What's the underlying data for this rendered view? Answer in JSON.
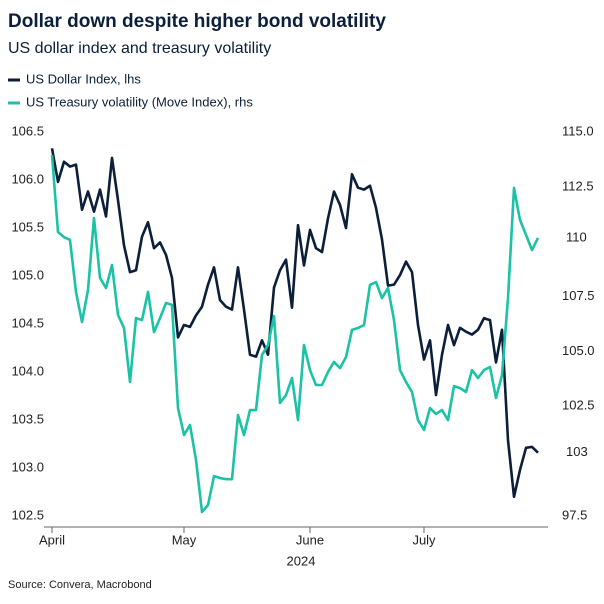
{
  "chart_data": {
    "type": "line",
    "title": "Dollar down despite higher bond volatility",
    "subtitle": "US dollar index and treasury volatility",
    "source": "Source: Convera, Macrobond",
    "x_label": "2024",
    "categories": [
      "April",
      null,
      null,
      null,
      null,
      null,
      null,
      null,
      null,
      null,
      null,
      null,
      null,
      null,
      null,
      null,
      null,
      null,
      null,
      null,
      null,
      null,
      "May",
      null,
      null,
      null,
      null,
      null,
      null,
      null,
      null,
      null,
      null,
      null,
      null,
      null,
      null,
      null,
      null,
      null,
      null,
      null,
      null,
      "June",
      null,
      null,
      null,
      null,
      null,
      null,
      null,
      null,
      null,
      null,
      null,
      null,
      null,
      null,
      null,
      null,
      null,
      null,
      "July",
      null,
      null,
      null,
      null,
      null,
      null,
      null,
      null,
      null,
      null,
      null,
      null,
      null,
      null,
      null,
      null,
      null,
      null,
      null
    ],
    "ylim": [
      102.5,
      106.5
    ],
    "yticks": [
      106.5,
      {
        "value": 106,
        "label": "106.0"
      },
      105.5,
      {
        "value": 105,
        "label": "105.0"
      },
      104.5,
      {
        "value": 104,
        "label": "104.0"
      },
      103.5,
      {
        "value": 103,
        "label": "103.0"
      },
      102.5
    ],
    "y2lim": [
      97.5,
      115
    ],
    "y2ticks": [
      {
        "value": 115,
        "label": "115.0"
      },
      112.5,
      107.5,
      {
        "value": 105,
        "label": "105.0"
      },
      102.5,
      97.5
    ],
    "series": [
      {
        "name": "US Dollar Index, lhs",
        "color": "#0b1f3a",
        "values": [
          106.33,
          105.98,
          106.19,
          106.14,
          106.16,
          105.69,
          105.88,
          105.67,
          105.9,
          105.62,
          106.23,
          105.79,
          105.32,
          105.04,
          105.06,
          105.41,
          105.56,
          105.29,
          105.35,
          105.22,
          104.98,
          104.36,
          104.49,
          104.47,
          104.59,
          104.68,
          104.91,
          105.09,
          104.75,
          104.68,
          104.65,
          105.09,
          104.65,
          104.18,
          104.16,
          104.33,
          104.18,
          104.88,
          105.06,
          105.17,
          104.67,
          105.53,
          105.11,
          105.48,
          105.29,
          105.25,
          105.6,
          105.88,
          105.74,
          105.5,
          106.06,
          105.92,
          105.9,
          105.94,
          105.71,
          105.38,
          104.9,
          104.91,
          105.01,
          105.15,
          105.04,
          104.49,
          104.13,
          104.33,
          103.76,
          104.18,
          104.49,
          104.28,
          104.46,
          104.42,
          104.39,
          104.44,
          104.56,
          104.54,
          104.1,
          104.44,
          103.29,
          102.7,
          102.98,
          103.21,
          103.22,
          103.16
        ],
        "value_labels": [
          null,
          null,
          null,
          null,
          null,
          null,
          null,
          null,
          null,
          null,
          null,
          null,
          null,
          null,
          null,
          null,
          null,
          null,
          null,
          null,
          null,
          null,
          null,
          null,
          null,
          null,
          null,
          null,
          null,
          null,
          null,
          null,
          null,
          null,
          null,
          null,
          null,
          null,
          null,
          null,
          null,
          null,
          null,
          null,
          null,
          null,
          null,
          null,
          null,
          null,
          null,
          null,
          null,
          null,
          null,
          null,
          null,
          null,
          null,
          null,
          null,
          null,
          null,
          null,
          null,
          null,
          null,
          null,
          null,
          null,
          null,
          null,
          null,
          null,
          null,
          null,
          null,
          null,
          null,
          null,
          null,
          "103"
        ]
      },
      {
        "name": "US Treasury volatility (Move Index), rhs",
        "color": "#1cc2a5",
        "axis": "y2",
        "values": [
          113.95,
          110.44,
          110.21,
          110.08,
          107.71,
          106.34,
          107.8,
          111.08,
          108.35,
          107.89,
          108.94,
          106.66,
          106.07,
          103.61,
          106.52,
          106.43,
          107.71,
          105.88,
          106.52,
          107.21,
          107.12,
          102.42,
          101.19,
          101.65,
          100.05,
          97.68,
          98.0,
          99.32,
          99.23,
          99.18,
          99.18,
          102.1,
          101.19,
          102.33,
          102.33,
          104.84,
          105.29,
          106.61,
          102.65,
          103.01,
          103.79,
          101.87,
          105.29,
          104.15,
          103.47,
          103.47,
          104.06,
          104.52,
          104.24,
          104.74,
          105.98,
          106.07,
          106.2,
          108.03,
          108.16,
          107.43,
          107.89,
          106.43,
          104.15,
          103.61,
          103.15,
          101.87,
          101.42,
          102.42,
          102.15,
          102.33,
          101.87,
          103.42,
          103.33,
          103.15,
          104.15,
          103.79,
          104.15,
          104.29,
          102.88,
          103.92,
          107.43,
          112.45,
          110.99,
          110.31,
          109.62,
          110.17
        ],
        "value_labels": [
          null,
          null,
          null,
          null,
          null,
          null,
          null,
          null,
          null,
          null,
          null,
          null,
          null,
          null,
          null,
          null,
          null,
          null,
          null,
          null,
          null,
          null,
          null,
          null,
          null,
          null,
          null,
          null,
          null,
          null,
          null,
          null,
          null,
          null,
          null,
          null,
          null,
          null,
          null,
          null,
          null,
          null,
          null,
          null,
          null,
          null,
          null,
          null,
          null,
          null,
          null,
          null,
          null,
          null,
          null,
          null,
          null,
          null,
          null,
          null,
          null,
          null,
          null,
          null,
          null,
          null,
          null,
          null,
          null,
          null,
          null,
          null,
          null,
          null,
          null,
          null,
          null,
          null,
          null,
          null,
          null,
          "110"
        ]
      }
    ]
  }
}
